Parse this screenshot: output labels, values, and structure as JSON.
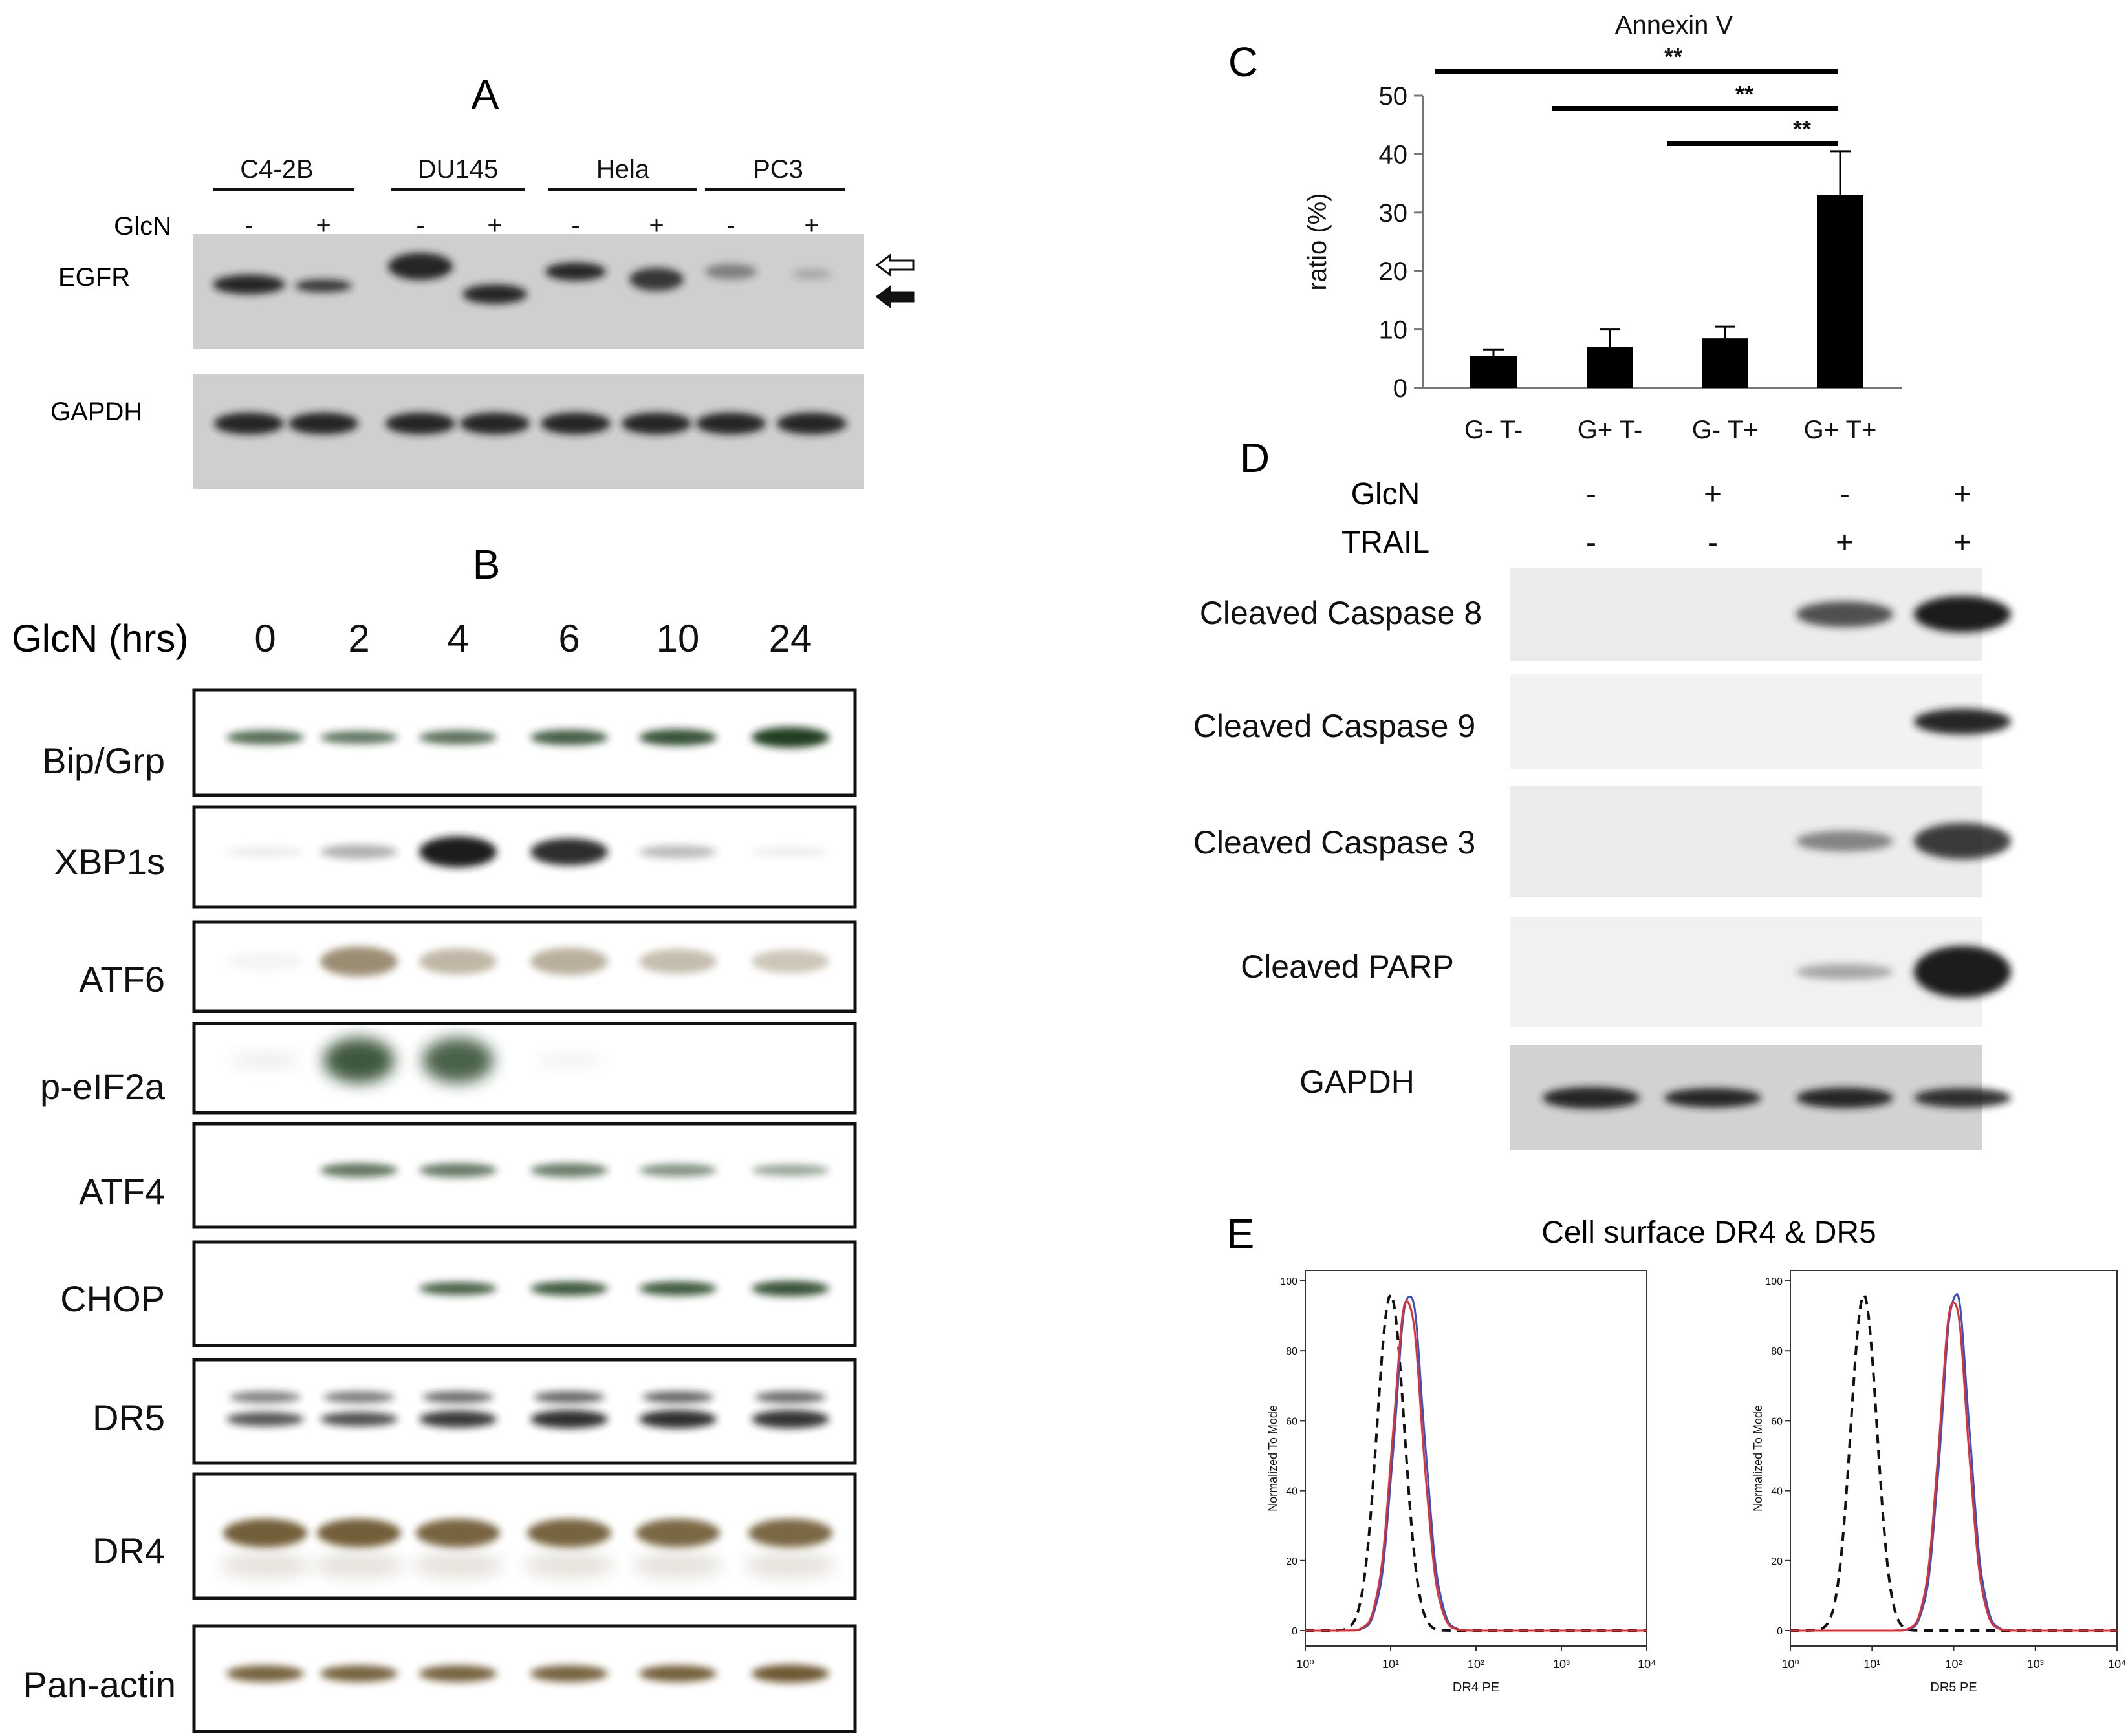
{
  "panel_a": {
    "letter": "A",
    "cell_lines": [
      "C4-2B",
      "DU145",
      "Hela",
      "PC3"
    ],
    "glcn_label": "GlcN",
    "glcn_signs": [
      "-",
      "+",
      "-",
      "+",
      "-",
      "+",
      "-",
      "+"
    ],
    "rows": [
      "EGFR",
      "GAPDH"
    ]
  },
  "panel_b": {
    "letter": "B",
    "time_label": "GlcN (hrs)",
    "timepoints": [
      "0",
      "2",
      "4",
      "6",
      "10",
      "24"
    ],
    "rows": [
      "Bip/Grp",
      "XBP1s",
      "ATF6",
      "p-eIF2a",
      "ATF4",
      "CHOP",
      "DR5",
      "DR4",
      "Pan-actin"
    ]
  },
  "panel_c": {
    "letter": "C",
    "chart_data": {
      "type": "bar",
      "title": "Annexin V",
      "ylabel": "ratio (%)",
      "xlabel": "",
      "categories": [
        "G- T-",
        "G+ T-",
        "G- T+",
        "G+ T+"
      ],
      "values": [
        5.5,
        7,
        8.5,
        33
      ],
      "error": [
        1,
        3,
        2,
        7.5
      ],
      "ylim": [
        0,
        50
      ],
      "yticks": [
        0,
        10,
        20,
        30,
        40,
        50
      ],
      "significance": [
        "**",
        "**",
        "**"
      ]
    }
  },
  "panel_d": {
    "letter": "D",
    "glcn_label": "GlcN",
    "trail_label": "TRAIL",
    "glcn_signs": [
      "-",
      "+",
      "-",
      "+"
    ],
    "trail_signs": [
      "-",
      "-",
      "+",
      "+"
    ],
    "rows": [
      "Cleaved  Caspase 8",
      "Cleaved  Caspase 9",
      "Cleaved  Caspase 3",
      "Cleaved  PARP",
      "GAPDH"
    ]
  },
  "panel_e": {
    "letter": "E",
    "title": "Cell surface DR4 & DR5",
    "ylabel": "Normalized To Mode",
    "yticks": [
      "0",
      "20",
      "40",
      "60",
      "80",
      "100"
    ],
    "xticks": [
      "10⁰",
      "10¹",
      "10²",
      "10³",
      "10⁴"
    ],
    "plots": [
      {
        "xlabel": "DR4 PE",
        "control_peak_log": 1.0,
        "sample_peak_log": 1.2
      },
      {
        "xlabel": "DR5 PE",
        "control_peak_log": 0.9,
        "sample_peak_log": 2.0
      }
    ]
  },
  "colors": {
    "band_dark": "#1a1a1a",
    "band_green": "#1f3a1c",
    "band_brown": "#5a4316",
    "trace_red": "#e03030",
    "trace_blue": "#3a4fc0"
  }
}
